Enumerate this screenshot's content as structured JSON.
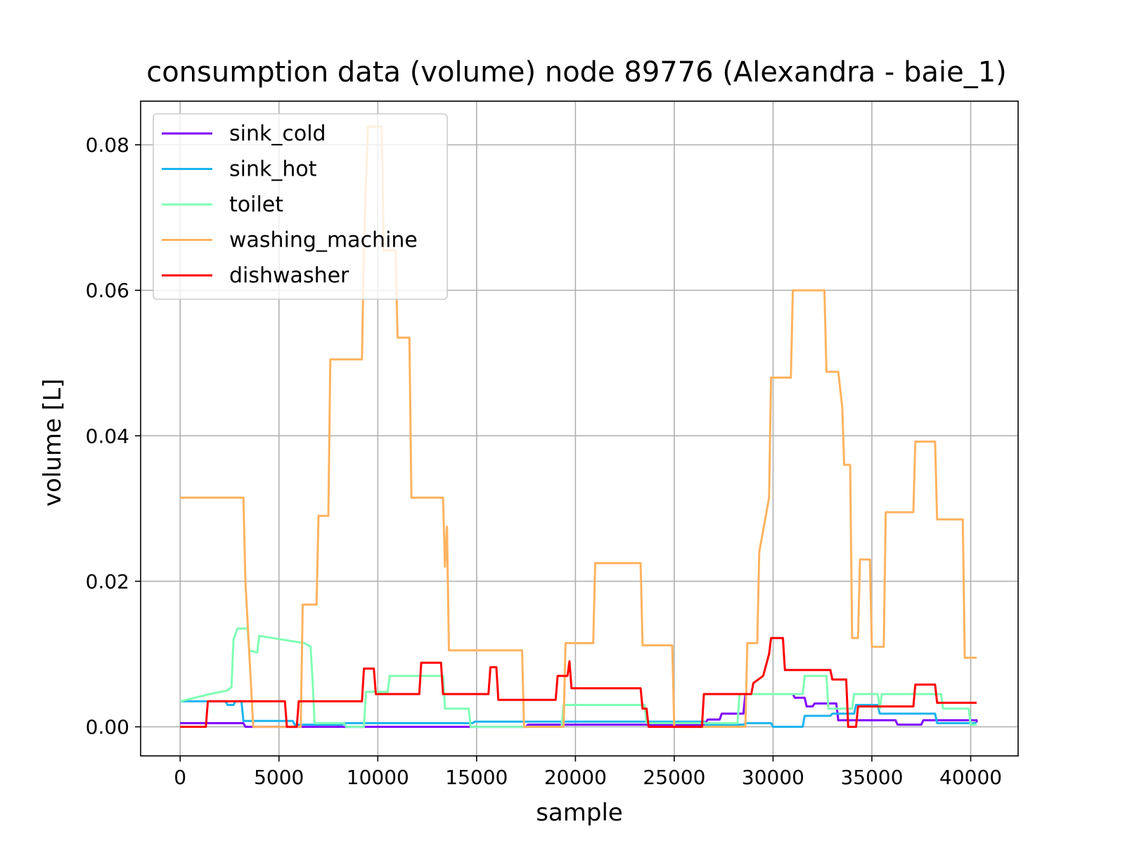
{
  "chart_data": {
    "type": "line",
    "title": "consumption data (volume) node 89776 (Alexandra - baie_1)",
    "xlabel": "sample",
    "ylabel": "volume [L]",
    "xlim": [
      -2000,
      42400
    ],
    "ylim": [
      -0.004,
      0.086
    ],
    "xticks": [
      0,
      5000,
      10000,
      15000,
      20000,
      25000,
      30000,
      35000,
      40000
    ],
    "xtick_labels": [
      "0",
      "5000",
      "10000",
      "15000",
      "20000",
      "25000",
      "30000",
      "35000",
      "40000"
    ],
    "yticks": [
      0.0,
      0.02,
      0.04,
      0.06,
      0.08
    ],
    "ytick_labels": [
      "0.00",
      "0.02",
      "0.04",
      "0.06",
      "0.08"
    ],
    "grid": true,
    "legend_position": "top-left",
    "series": [
      {
        "name": "sink_cold",
        "color": "#8000ff",
        "points": [
          [
            0,
            0.0005
          ],
          [
            3200,
            0.0005
          ],
          [
            3300,
            0.0
          ],
          [
            17500,
            0.0
          ],
          [
            17600,
            0.0003
          ],
          [
            26500,
            0.0003
          ],
          [
            26700,
            0.001
          ],
          [
            27300,
            0.001
          ],
          [
            27400,
            0.0018
          ],
          [
            28500,
            0.0018
          ],
          [
            28600,
            0.0045
          ],
          [
            31000,
            0.0045
          ],
          [
            31100,
            0.004
          ],
          [
            31600,
            0.004
          ],
          [
            31700,
            0.0028
          ],
          [
            32000,
            0.0028
          ],
          [
            32100,
            0.0032
          ],
          [
            33200,
            0.0032
          ],
          [
            33300,
            0.0009
          ],
          [
            36200,
            0.0009
          ],
          [
            36300,
            0.0003
          ],
          [
            37500,
            0.0003
          ],
          [
            37600,
            0.0009
          ],
          [
            40300,
            0.0009
          ],
          [
            40300,
            0.0006
          ]
        ]
      },
      {
        "name": "sink_hot",
        "color": "#1cb4ee",
        "points": [
          [
            0,
            0.0035
          ],
          [
            2300,
            0.0035
          ],
          [
            2400,
            0.003
          ],
          [
            2700,
            0.003
          ],
          [
            2800,
            0.0035
          ],
          [
            3100,
            0.0035
          ],
          [
            3200,
            0.0008
          ],
          [
            5700,
            0.0008
          ],
          [
            5800,
            0.0003
          ],
          [
            8200,
            0.0003
          ],
          [
            8300,
            0.0005
          ],
          [
            14800,
            0.0005
          ],
          [
            14900,
            0.0007
          ],
          [
            26500,
            0.0007
          ],
          [
            26600,
            0.0003
          ],
          [
            28500,
            0.0003
          ],
          [
            28600,
            0.0005
          ],
          [
            29900,
            0.0005
          ],
          [
            30000,
            0.0
          ],
          [
            31500,
            0.0
          ],
          [
            31600,
            0.0015
          ],
          [
            32900,
            0.0015
          ],
          [
            33000,
            0.0018
          ],
          [
            34100,
            0.0018
          ],
          [
            34200,
            0.003
          ],
          [
            35300,
            0.003
          ],
          [
            35400,
            0.0018
          ],
          [
            38200,
            0.0018
          ],
          [
            38300,
            0.0005
          ],
          [
            40300,
            0.0005
          ]
        ]
      },
      {
        "name": "toilet",
        "color": "#80ffb4",
        "points": [
          [
            0,
            0.0035
          ],
          [
            1500,
            0.0045
          ],
          [
            2400,
            0.005
          ],
          [
            2600,
            0.0055
          ],
          [
            2700,
            0.012
          ],
          [
            2900,
            0.0135
          ],
          [
            3400,
            0.0135
          ],
          [
            3500,
            0.0105
          ],
          [
            3900,
            0.0102
          ],
          [
            4000,
            0.0125
          ],
          [
            6300,
            0.0115
          ],
          [
            6600,
            0.011
          ],
          [
            6700,
            0.0065
          ],
          [
            6800,
            0.0005
          ],
          [
            8300,
            0.0005
          ],
          [
            8400,
            0.0
          ],
          [
            9300,
            0.0
          ],
          [
            9400,
            0.0048
          ],
          [
            10500,
            0.0048
          ],
          [
            10600,
            0.007
          ],
          [
            13300,
            0.007
          ],
          [
            13400,
            0.0025
          ],
          [
            14600,
            0.0025
          ],
          [
            14700,
            0.0
          ],
          [
            19300,
            0.0
          ],
          [
            19400,
            0.003
          ],
          [
            23500,
            0.003
          ],
          [
            23600,
            0.0005
          ],
          [
            28200,
            0.0005
          ],
          [
            28300,
            0.0045
          ],
          [
            31500,
            0.0045
          ],
          [
            31600,
            0.007
          ],
          [
            32700,
            0.007
          ],
          [
            32800,
            0.0025
          ],
          [
            34000,
            0.0025
          ],
          [
            34100,
            0.0045
          ],
          [
            35300,
            0.0045
          ],
          [
            35400,
            0.0025
          ],
          [
            35500,
            0.0045
          ],
          [
            38500,
            0.0045
          ],
          [
            38600,
            0.0025
          ],
          [
            39900,
            0.0025
          ],
          [
            40000,
            0.0003
          ],
          [
            40300,
            0.0003
          ]
        ]
      },
      {
        "name": "washing_machine",
        "color": "#ffb360",
        "points": [
          [
            0,
            0.0315
          ],
          [
            3200,
            0.0315
          ],
          [
            3300,
            0.02
          ],
          [
            3700,
            0.0
          ],
          [
            6100,
            0.0
          ],
          [
            6200,
            0.0168
          ],
          [
            6900,
            0.0168
          ],
          [
            7000,
            0.029
          ],
          [
            7500,
            0.029
          ],
          [
            7600,
            0.0505
          ],
          [
            9200,
            0.0505
          ],
          [
            9300,
            0.066
          ],
          [
            9500,
            0.0825
          ],
          [
            10200,
            0.0825
          ],
          [
            10300,
            0.0655
          ],
          [
            10900,
            0.0655
          ],
          [
            11000,
            0.0535
          ],
          [
            11600,
            0.0535
          ],
          [
            11700,
            0.0315
          ],
          [
            13300,
            0.0315
          ],
          [
            13400,
            0.022
          ],
          [
            13500,
            0.0275
          ],
          [
            13600,
            0.0105
          ],
          [
            17300,
            0.0105
          ],
          [
            17400,
            0.0
          ],
          [
            19400,
            0.0
          ],
          [
            19500,
            0.0115
          ],
          [
            20900,
            0.0115
          ],
          [
            21000,
            0.0225
          ],
          [
            23300,
            0.0225
          ],
          [
            23400,
            0.0112
          ],
          [
            24900,
            0.0112
          ],
          [
            25000,
            0.0
          ],
          [
            28600,
            0.0
          ],
          [
            28700,
            0.0115
          ],
          [
            29200,
            0.0115
          ],
          [
            29300,
            0.024
          ],
          [
            29800,
            0.0315
          ],
          [
            29900,
            0.048
          ],
          [
            30900,
            0.048
          ],
          [
            31000,
            0.06
          ],
          [
            32600,
            0.06
          ],
          [
            32700,
            0.0488
          ],
          [
            33300,
            0.0488
          ],
          [
            33500,
            0.044
          ],
          [
            33600,
            0.036
          ],
          [
            33900,
            0.036
          ],
          [
            34000,
            0.0122
          ],
          [
            34300,
            0.0122
          ],
          [
            34400,
            0.023
          ],
          [
            34900,
            0.023
          ],
          [
            35000,
            0.011
          ],
          [
            35600,
            0.011
          ],
          [
            35700,
            0.0295
          ],
          [
            37100,
            0.0295
          ],
          [
            37200,
            0.0392
          ],
          [
            38200,
            0.0392
          ],
          [
            38300,
            0.0285
          ],
          [
            39600,
            0.0285
          ],
          [
            39700,
            0.0095
          ],
          [
            40300,
            0.0095
          ]
        ]
      },
      {
        "name": "dishwasher",
        "color": "#ff0000",
        "points": [
          [
            0,
            0.0
          ],
          [
            1300,
            0.0
          ],
          [
            1400,
            0.0035
          ],
          [
            5300,
            0.0035
          ],
          [
            5400,
            0.0
          ],
          [
            5900,
            0.0
          ],
          [
            6000,
            0.0035
          ],
          [
            9200,
            0.0035
          ],
          [
            9300,
            0.008
          ],
          [
            9800,
            0.008
          ],
          [
            9900,
            0.0045
          ],
          [
            12100,
            0.0045
          ],
          [
            12200,
            0.0088
          ],
          [
            13200,
            0.0088
          ],
          [
            13300,
            0.0045
          ],
          [
            15600,
            0.0045
          ],
          [
            15700,
            0.0082
          ],
          [
            16000,
            0.0082
          ],
          [
            16100,
            0.0037
          ],
          [
            19000,
            0.0037
          ],
          [
            19100,
            0.007
          ],
          [
            19600,
            0.007
          ],
          [
            19700,
            0.009
          ],
          [
            19800,
            0.0053
          ],
          [
            23300,
            0.0053
          ],
          [
            23400,
            0.0025
          ],
          [
            23600,
            0.0025
          ],
          [
            23700,
            0.0
          ],
          [
            26400,
            0.0
          ],
          [
            26500,
            0.0045
          ],
          [
            28900,
            0.0045
          ],
          [
            29000,
            0.006
          ],
          [
            29500,
            0.007
          ],
          [
            29800,
            0.01
          ],
          [
            29900,
            0.0122
          ],
          [
            30500,
            0.0122
          ],
          [
            30600,
            0.0078
          ],
          [
            32900,
            0.0078
          ],
          [
            33000,
            0.0065
          ],
          [
            33700,
            0.0065
          ],
          [
            33800,
            0.0
          ],
          [
            34200,
            0.0
          ],
          [
            34300,
            0.0028
          ],
          [
            37100,
            0.0028
          ],
          [
            37200,
            0.0058
          ],
          [
            38200,
            0.0058
          ],
          [
            38300,
            0.0033
          ],
          [
            40300,
            0.0033
          ]
        ]
      }
    ]
  }
}
